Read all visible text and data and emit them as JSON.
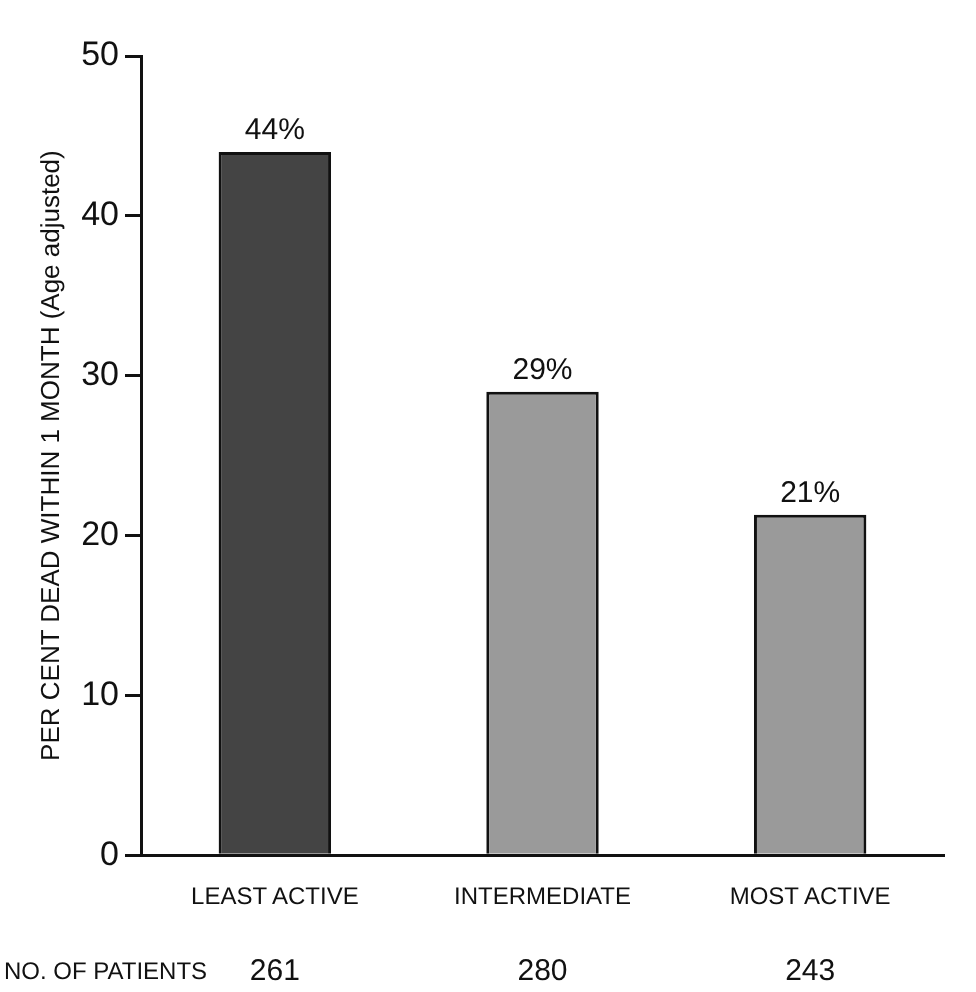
{
  "chart_data": {
    "type": "bar",
    "ylabel": "PER CENT DEAD WITHIN 1 MONTH (Age adjusted)",
    "categories": [
      "LEAST ACTIVE",
      "INTERMEDIATE",
      "MOST ACTIVE"
    ],
    "values": [
      44,
      29,
      21.3
    ],
    "colors": [
      "#444444",
      "#9a9a9a",
      "#9a9a9a"
    ],
    "value_labels": [
      "44%",
      "29%",
      "21%"
    ],
    "ylim": [
      0,
      50
    ],
    "yticks": [
      0,
      10,
      20,
      30,
      40,
      50
    ],
    "grid": false,
    "legend": false,
    "annotations": [
      "NO. OF PATIENTS",
      "261",
      "280",
      "243"
    ]
  }
}
